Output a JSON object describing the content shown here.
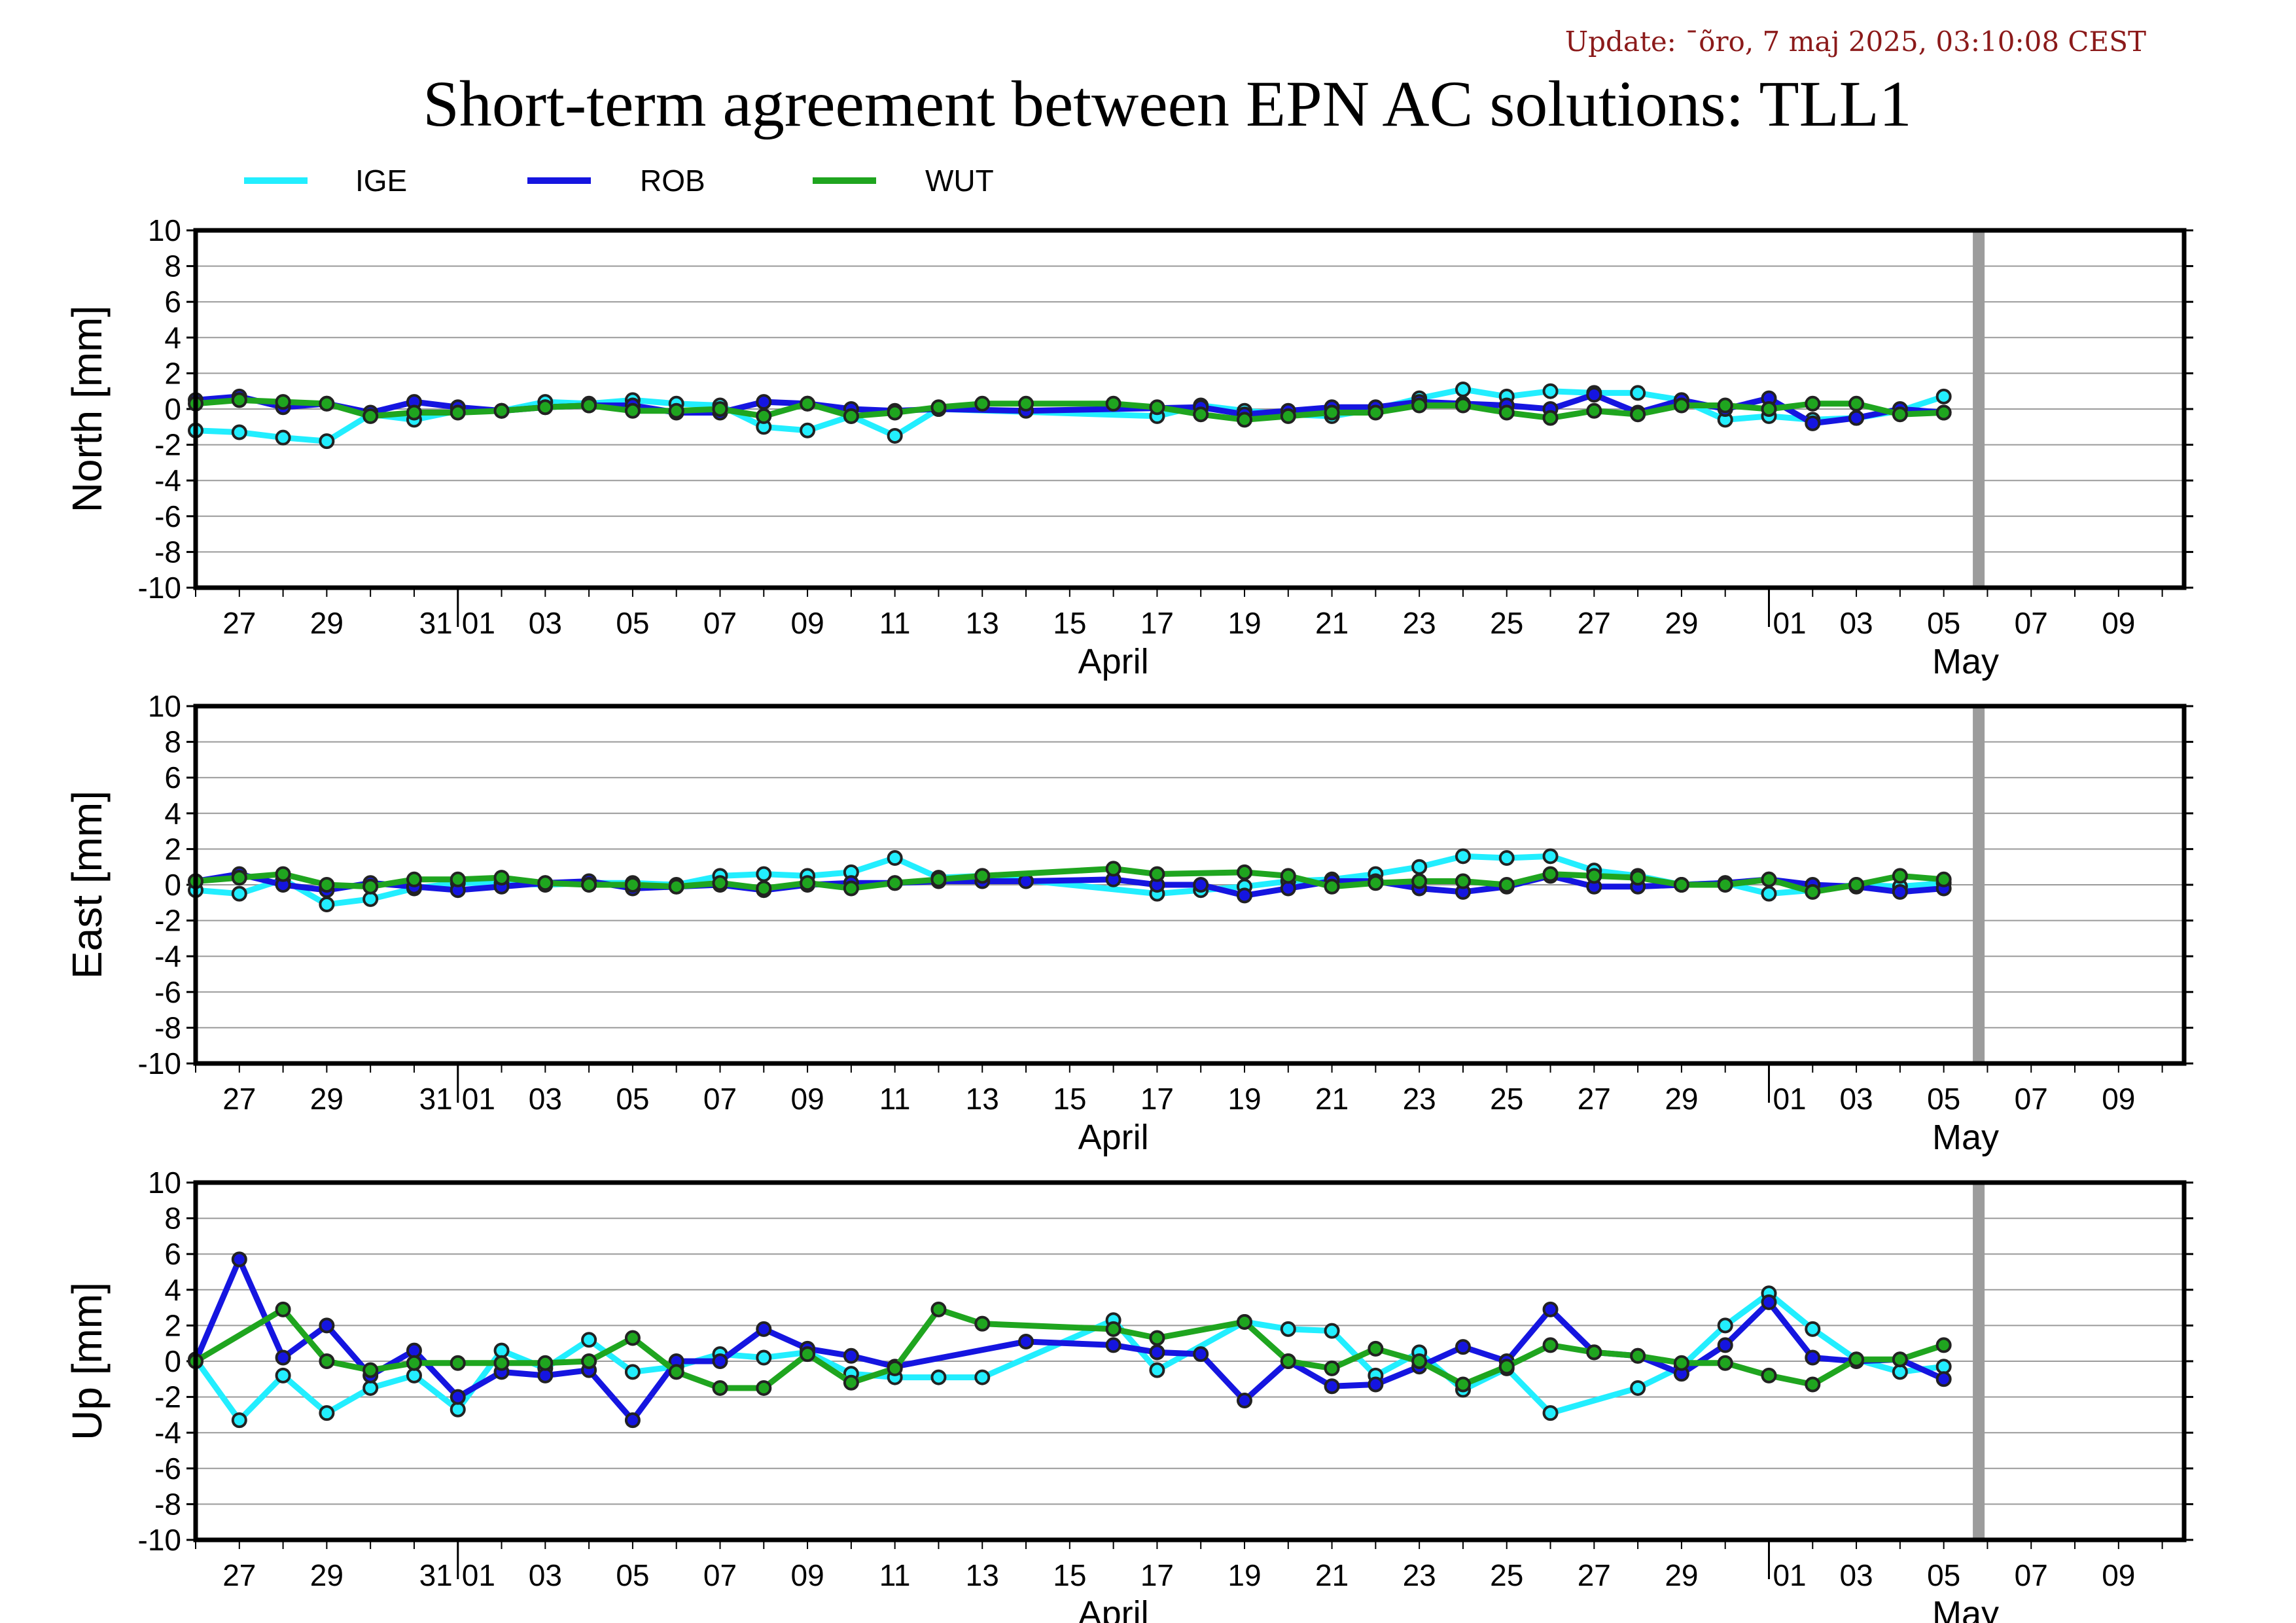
{
  "header": {
    "update": "Update: ¯õro, 7 maj 2025, 03:10:08 CEST",
    "title": "Short-term agreement between EPN AC solutions: TLL1"
  },
  "colors": {
    "IGE": "#22eeff",
    "ROB": "#1515e0",
    "WUT": "#1fa51f",
    "marker_line": "#444444"
  },
  "chart_data": {
    "type": "line",
    "title": "Short-term agreement between EPN AC solutions: TLL1",
    "x_unit": "day offset from 26 March 2025 (0 = 26 Mar, 6 = 1 Apr, 36 = 1 May)",
    "xlim": [
      0,
      45.5
    ],
    "ylim": [
      -10,
      10
    ],
    "grid": "horizontal",
    "legend_position": "top-left",
    "legend": [
      "IGE",
      "ROB",
      "WUT"
    ],
    "vertical_marker_day": 40.8,
    "x_tick_labels": [
      {
        "day": 1,
        "label": "27"
      },
      {
        "day": 3,
        "label": "29"
      },
      {
        "day": 5,
        "label": "31"
      },
      {
        "day": 6,
        "label": "01"
      },
      {
        "day": 8,
        "label": "03"
      },
      {
        "day": 10,
        "label": "05"
      },
      {
        "day": 12,
        "label": "07"
      },
      {
        "day": 14,
        "label": "09"
      },
      {
        "day": 16,
        "label": "11"
      },
      {
        "day": 18,
        "label": "13"
      },
      {
        "day": 20,
        "label": "15"
      },
      {
        "day": 22,
        "label": "17"
      },
      {
        "day": 24,
        "label": "19"
      },
      {
        "day": 26,
        "label": "21"
      },
      {
        "day": 28,
        "label": "23"
      },
      {
        "day": 30,
        "label": "25"
      },
      {
        "day": 32,
        "label": "27"
      },
      {
        "day": 34,
        "label": "29"
      },
      {
        "day": 36,
        "label": "01"
      },
      {
        "day": 38,
        "label": "03"
      },
      {
        "day": 40,
        "label": "05"
      },
      {
        "day": 42,
        "label": "07"
      },
      {
        "day": 44,
        "label": "09"
      }
    ],
    "month_labels": [
      {
        "day": 21,
        "label": "April"
      },
      {
        "day": 40.5,
        "label": "May"
      }
    ],
    "month_separator_days": [
      6,
      36
    ],
    "y_ticks": [
      10,
      8,
      6,
      4,
      2,
      0,
      -2,
      -4,
      -6,
      -8,
      -10
    ],
    "panels": [
      {
        "ylabel": "North [mm]",
        "series": [
          {
            "name": "IGE",
            "x": [
              0,
              1,
              2,
              3,
              4,
              5,
              6,
              7,
              8,
              9,
              10,
              11,
              12,
              13,
              14,
              15,
              16,
              17,
              22,
              23,
              24,
              25,
              26,
              27,
              28,
              29,
              30,
              31,
              32,
              33,
              34,
              35,
              36,
              37,
              38,
              39,
              40
            ],
            "y": [
              -1.2,
              -1.3,
              -1.6,
              -1.8,
              -0.3,
              -0.6,
              -0.1,
              -0.1,
              0.4,
              0.3,
              0.5,
              0.3,
              0.2,
              -1.0,
              -1.2,
              -0.4,
              -1.5,
              0.0,
              -0.4,
              0.2,
              -0.1,
              -0.3,
              -0.4,
              0.0,
              0.6,
              1.1,
              0.7,
              1.0,
              0.9,
              0.9,
              0.5,
              -0.6,
              -0.4,
              -0.6,
              -0.5,
              -0.1,
              0.7
            ]
          },
          {
            "name": "ROB",
            "x": [
              0,
              1,
              2,
              3,
              4,
              5,
              6,
              7,
              8,
              9,
              10,
              11,
              12,
              13,
              14,
              15,
              16,
              17,
              19,
              23,
              24,
              25,
              26,
              27,
              28,
              29,
              30,
              31,
              32,
              33,
              34,
              35,
              36,
              37,
              38,
              39,
              40
            ],
            "y": [
              0.5,
              0.7,
              0.1,
              0.3,
              -0.2,
              0.4,
              0.1,
              -0.1,
              0.1,
              0.2,
              0.2,
              -0.2,
              -0.2,
              0.4,
              0.3,
              0.0,
              -0.1,
              0.0,
              -0.1,
              0.1,
              -0.3,
              -0.1,
              0.1,
              0.1,
              0.4,
              0.3,
              0.2,
              0.0,
              0.8,
              -0.2,
              0.5,
              0.0,
              0.6,
              -0.8,
              -0.5,
              0.0,
              -0.2
            ]
          },
          {
            "name": "WUT",
            "x": [
              0,
              1,
              2,
              3,
              4,
              5,
              6,
              7,
              8,
              9,
              10,
              11,
              12,
              13,
              14,
              15,
              16,
              17,
              18,
              19,
              21,
              22,
              23,
              24,
              25,
              26,
              27,
              28,
              29,
              30,
              31,
              32,
              33,
              34,
              35,
              36,
              37,
              38,
              39,
              40
            ],
            "y": [
              0.3,
              0.5,
              0.4,
              0.3,
              -0.4,
              -0.2,
              -0.2,
              -0.1,
              0.1,
              0.2,
              -0.1,
              -0.1,
              0.0,
              -0.4,
              0.3,
              -0.4,
              -0.2,
              0.1,
              0.3,
              0.3,
              0.3,
              0.1,
              -0.3,
              -0.6,
              -0.4,
              -0.2,
              -0.2,
              0.2,
              0.2,
              -0.2,
              -0.5,
              -0.1,
              -0.3,
              0.2,
              0.2,
              0.0,
              0.3,
              0.3,
              -0.3,
              -0.2
            ]
          }
        ]
      },
      {
        "ylabel": "East [mm]",
        "series": [
          {
            "name": "IGE",
            "x": [
              0,
              1,
              2,
              3,
              4,
              5,
              6,
              7,
              8,
              9,
              10,
              11,
              12,
              13,
              14,
              15,
              16,
              17,
              18,
              22,
              23,
              24,
              25,
              26,
              27,
              28,
              29,
              30,
              31,
              32,
              33,
              34,
              35,
              36,
              37,
              38,
              39,
              40
            ],
            "y": [
              -0.3,
              -0.5,
              0.3,
              -1.1,
              -0.8,
              -0.2,
              0.1,
              0.1,
              0.0,
              0.1,
              0.1,
              0.0,
              0.5,
              0.6,
              0.5,
              0.7,
              1.5,
              0.4,
              0.5,
              -0.5,
              -0.3,
              -0.1,
              0.2,
              0.3,
              0.6,
              1.0,
              1.6,
              1.5,
              1.6,
              0.8,
              0.5,
              0.0,
              0.1,
              -0.5,
              -0.3,
              0.0,
              -0.1,
              0.1
            ]
          },
          {
            "name": "ROB",
            "x": [
              0,
              1,
              2,
              3,
              4,
              5,
              6,
              7,
              8,
              9,
              10,
              11,
              12,
              13,
              14,
              15,
              16,
              17,
              18,
              19,
              21,
              22,
              23,
              24,
              25,
              26,
              27,
              28,
              29,
              30,
              31,
              32,
              33,
              34,
              35,
              36,
              37,
              38,
              39,
              40
            ],
            "y": [
              0.2,
              0.6,
              0.0,
              -0.3,
              0.1,
              -0.1,
              -0.3,
              -0.1,
              0.1,
              0.2,
              -0.2,
              -0.1,
              0.0,
              -0.3,
              0.0,
              0.1,
              0.1,
              0.2,
              0.2,
              0.2,
              0.3,
              0.0,
              0.0,
              -0.6,
              -0.2,
              0.2,
              0.2,
              -0.2,
              -0.4,
              -0.1,
              0.5,
              -0.1,
              -0.1,
              0.0,
              0.1,
              0.3,
              0.0,
              -0.1,
              -0.4,
              -0.2
            ]
          },
          {
            "name": "WUT",
            "x": [
              0,
              1,
              2,
              3,
              4,
              5,
              6,
              7,
              8,
              9,
              10,
              11,
              12,
              13,
              14,
              15,
              16,
              17,
              18,
              21,
              22,
              24,
              25,
              26,
              27,
              28,
              29,
              30,
              31,
              32,
              33,
              34,
              35,
              36,
              37,
              38,
              39,
              40
            ],
            "y": [
              0.2,
              0.4,
              0.6,
              0.0,
              -0.1,
              0.3,
              0.3,
              0.4,
              0.1,
              0.0,
              0.0,
              -0.1,
              0.1,
              -0.2,
              0.1,
              -0.2,
              0.1,
              0.3,
              0.5,
              0.9,
              0.6,
              0.7,
              0.5,
              -0.1,
              0.1,
              0.2,
              0.2,
              0.0,
              0.6,
              0.5,
              0.4,
              0.0,
              0.0,
              0.3,
              -0.4,
              0.0,
              0.5,
              0.3
            ]
          }
        ]
      },
      {
        "ylabel": "Up [mm]",
        "series": [
          {
            "name": "IGE",
            "x": [
              0,
              1,
              2,
              3,
              4,
              5,
              6,
              7,
              8,
              9,
              10,
              11,
              12,
              13,
              14,
              15,
              16,
              17,
              18,
              21,
              22,
              24,
              25,
              26,
              27,
              28,
              29,
              30,
              31,
              33,
              34,
              35,
              36,
              37,
              38,
              39,
              40
            ],
            "y": [
              0.1,
              -3.3,
              -0.8,
              -2.9,
              -1.5,
              -0.8,
              -2.7,
              0.6,
              -0.4,
              1.2,
              -0.6,
              -0.3,
              0.4,
              0.2,
              0.5,
              -0.7,
              -0.9,
              -0.9,
              -0.9,
              2.3,
              -0.5,
              2.2,
              1.8,
              1.7,
              -0.8,
              0.5,
              -1.6,
              -0.4,
              -2.9,
              -1.5,
              -0.3,
              2.0,
              3.8,
              1.8,
              0.1,
              -0.6,
              -0.3
            ]
          },
          {
            "name": "ROB",
            "x": [
              0,
              1,
              2,
              3,
              4,
              5,
              6,
              7,
              8,
              9,
              10,
              11,
              12,
              13,
              14,
              15,
              16,
              19,
              21,
              22,
              23,
              24,
              25,
              26,
              27,
              28,
              29,
              30,
              31,
              32,
              33,
              34,
              35,
              36,
              37,
              38,
              39,
              40
            ],
            "y": [
              0.0,
              5.7,
              0.2,
              2.0,
              -0.8,
              0.6,
              -2.0,
              -0.6,
              -0.8,
              -0.5,
              -3.3,
              0.0,
              0.0,
              1.8,
              0.7,
              0.3,
              -0.3,
              1.1,
              0.9,
              0.5,
              0.4,
              -2.2,
              0.0,
              -1.4,
              -1.3,
              -0.3,
              0.8,
              0.0,
              2.9,
              0.5,
              0.3,
              -0.7,
              0.9,
              3.3,
              0.2,
              0.0,
              0.1,
              -1.0
            ]
          },
          {
            "name": "WUT",
            "x": [
              0,
              2,
              3,
              4,
              5,
              6,
              7,
              8,
              9,
              10,
              11,
              12,
              13,
              14,
              15,
              16,
              17,
              18,
              21,
              22,
              24,
              25,
              26,
              27,
              28,
              29,
              30,
              31,
              32,
              33,
              34,
              35,
              36,
              37,
              38,
              39,
              40
            ],
            "y": [
              0.0,
              2.9,
              0.0,
              -0.5,
              -0.1,
              -0.1,
              -0.1,
              -0.1,
              0.0,
              1.3,
              -0.6,
              -1.5,
              -1.5,
              0.4,
              -1.2,
              -0.4,
              2.9,
              2.1,
              1.8,
              1.3,
              2.2,
              0.0,
              -0.4,
              0.7,
              0.0,
              -1.3,
              -0.3,
              0.9,
              0.5,
              0.3,
              -0.1,
              -0.1,
              -0.8,
              -1.3,
              0.1,
              0.1,
              0.9
            ]
          }
        ]
      }
    ]
  }
}
